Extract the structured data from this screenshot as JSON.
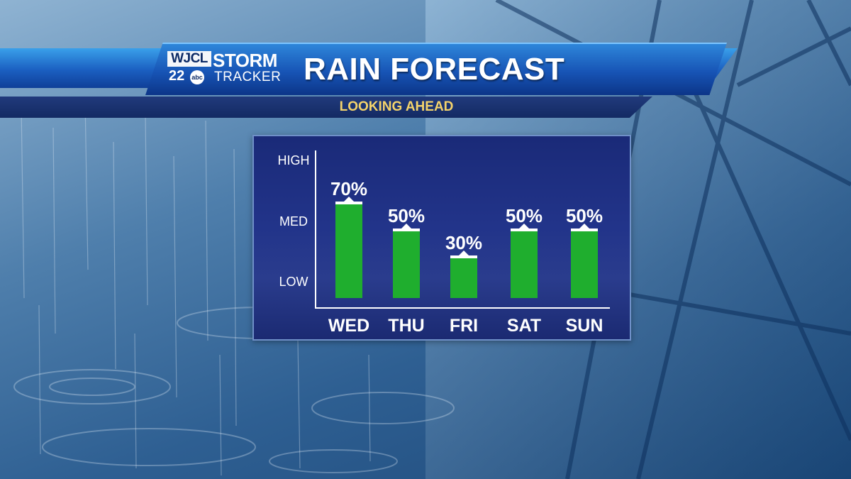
{
  "header": {
    "logo_station": "WJCL",
    "logo_channel": "22",
    "logo_network": "abc",
    "logo_line1": "STORM",
    "logo_line2": "TRACKER",
    "title": "RAIN FORECAST",
    "subtitle": "LOOKING AHEAD"
  },
  "colors": {
    "bar": "#1fae2e",
    "bar_cap": "#ffffff",
    "panel": "#22348a",
    "subtitle_text": "#f4d36b",
    "title_banner": "#1b5fc1"
  },
  "chart_data": {
    "type": "bar",
    "categories": [
      "WED",
      "THU",
      "FRI",
      "SAT",
      "SUN"
    ],
    "values": [
      70,
      50,
      30,
      50,
      50
    ],
    "value_labels": [
      "70%",
      "50%",
      "30%",
      "50%",
      "50%"
    ],
    "y_tick_labels": [
      "HIGH",
      "MED",
      "LOW"
    ],
    "ylim": [
      0,
      100
    ],
    "grid": false,
    "legend": "none"
  }
}
